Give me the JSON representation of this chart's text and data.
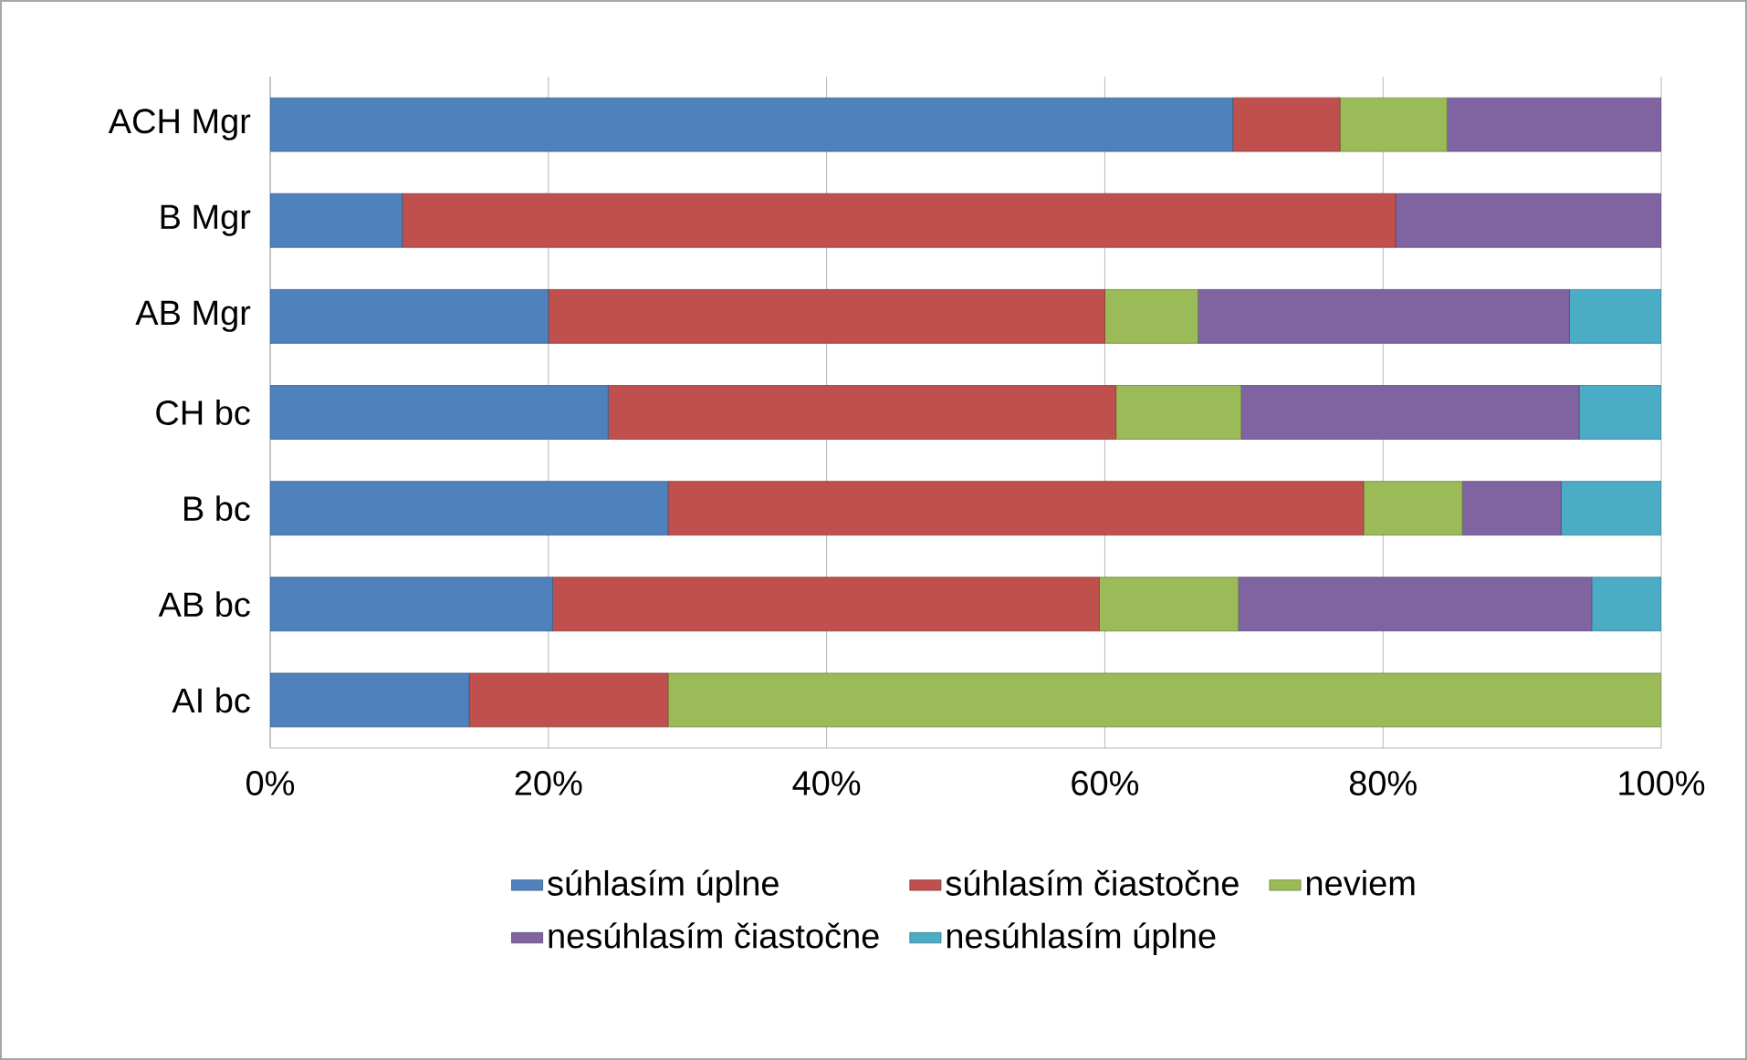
{
  "chart_data": {
    "type": "bar",
    "orientation": "horizontal",
    "stacked": true,
    "categories": [
      "ACH Mgr",
      "B Mgr",
      "AB Mgr",
      "CH bc",
      "B bc",
      "AB bc",
      "AI bc"
    ],
    "series": [
      {
        "name": "súhlasím úplne",
        "color": "#4f81bd",
        "values": [
          69.2,
          9.5,
          20.0,
          24.3,
          28.6,
          20.3,
          14.3
        ]
      },
      {
        "name": "súhlasím čiastočne",
        "color": "#c0504d",
        "values": [
          7.7,
          71.4,
          40.0,
          36.5,
          50.0,
          39.3,
          14.3
        ]
      },
      {
        "name": "neviem",
        "color": "#9bbb59",
        "values": [
          7.7,
          0,
          6.7,
          9.0,
          7.1,
          10.0,
          71.4
        ]
      },
      {
        "name": "nesúhlasím čiastočne",
        "color": "#8064a2",
        "values": [
          15.4,
          19.1,
          26.7,
          24.3,
          7.1,
          25.4,
          0
        ]
      },
      {
        "name": "nesúhlasím úplne",
        "color": "#4bacc6",
        "values": [
          0,
          0,
          6.6,
          5.9,
          7.2,
          5.0,
          0
        ]
      }
    ],
    "xlim": [
      0,
      100
    ],
    "xticks": [
      {
        "value": 0,
        "label": "0%"
      },
      {
        "value": 20,
        "label": "20%"
      },
      {
        "value": 40,
        "label": "40%"
      },
      {
        "value": 60,
        "label": "60%"
      },
      {
        "value": 80,
        "label": "80%"
      },
      {
        "value": 100,
        "label": "100%"
      }
    ],
    "grid": "x",
    "legend": "bottom"
  }
}
